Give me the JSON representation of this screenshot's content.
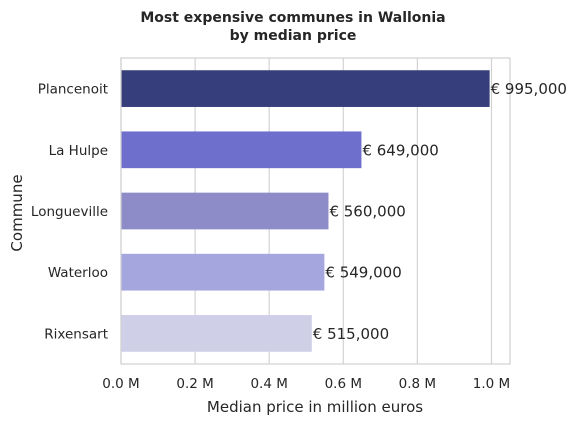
{
  "chart_data": {
    "type": "bar",
    "orientation": "horizontal",
    "title_line1": "Most expensive communes in Wallonia",
    "title_line2": "by median price",
    "xlabel": "Median price in million euros",
    "ylabel": "Commune",
    "xlim": [
      0,
      1050000
    ],
    "xticks": [
      0,
      200000,
      400000,
      600000,
      800000,
      1000000
    ],
    "xtick_labels": [
      "0.0 M",
      "0.2 M",
      "0.4 M",
      "0.6 M",
      "0.8 M",
      "1.0 M"
    ],
    "categories": [
      "Plancenoit",
      "La Hulpe",
      "Longueville",
      "Waterloo",
      "Rixensart"
    ],
    "values": [
      995000,
      649000,
      560000,
      549000,
      515000
    ],
    "data_labels": [
      "€ 995,000",
      "€ 649,000",
      "€ 560,000",
      "€ 549,000",
      "€ 515,000"
    ],
    "colors": [
      "#363e7b",
      "#6e6fcd",
      "#8d8cc8",
      "#a6a6de",
      "#cfcfe8"
    ],
    "grid": "vertical",
    "legend": "none"
  }
}
